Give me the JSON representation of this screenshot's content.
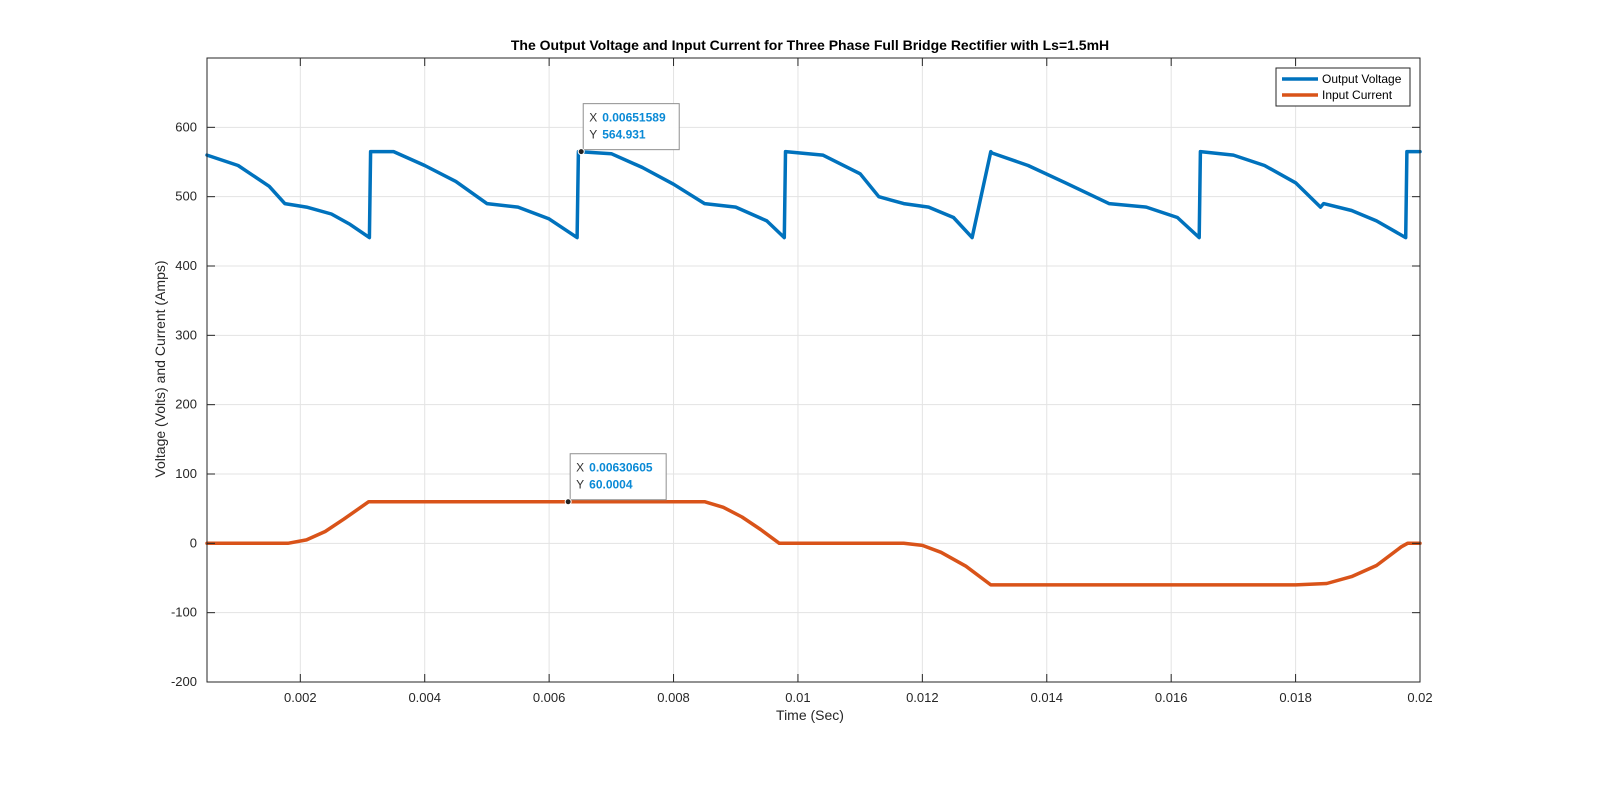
{
  "chart_data": {
    "type": "line",
    "title": "The Output Voltage and Input Current for Three Phase Full Bridge Rectifier with Ls=1.5mH",
    "xlabel": "Time (Sec)",
    "ylabel": "Voltage (Volts) and Current (Amps)",
    "xlim": [
      0.0005,
      0.02
    ],
    "ylim": [
      -200,
      700
    ],
    "xticks": [
      0.002,
      0.004,
      0.006,
      0.008,
      0.01,
      0.012,
      0.014,
      0.016,
      0.018,
      0.02
    ],
    "xtick_labels": [
      "0.002",
      "0.004",
      "0.006",
      "0.008",
      "0.01",
      "0.012",
      "0.014",
      "0.016",
      "0.018",
      "0.02"
    ],
    "yticks": [
      -200,
      -100,
      0,
      100,
      200,
      300,
      400,
      500,
      600
    ],
    "ytick_labels": [
      "-200",
      "-100",
      "0",
      "100",
      "200",
      "300",
      "400",
      "500",
      "600"
    ],
    "grid": true,
    "legend_position": "top-right",
    "series": [
      {
        "name": "Output Voltage",
        "color": "#0072BD",
        "x": [
          0.0005,
          0.001,
          0.0015,
          0.00175,
          0.0021,
          0.0025,
          0.0028,
          0.00311,
          0.00313,
          0.0035,
          0.004,
          0.0045,
          0.005,
          0.0055,
          0.006,
          0.00645,
          0.00647,
          0.007,
          0.0075,
          0.008,
          0.0085,
          0.009,
          0.0095,
          0.00978,
          0.0098,
          0.0104,
          0.011,
          0.0113,
          0.0117,
          0.0121,
          0.0125,
          0.0128,
          0.0131,
          0.01312,
          0.0137,
          0.0143,
          0.015,
          0.0156,
          0.0161,
          0.01645,
          0.01647,
          0.017,
          0.0175,
          0.018,
          0.0184,
          0.01845,
          0.0189,
          0.0193,
          0.01977,
          0.01979,
          0.02
        ],
        "y": [
          560,
          545,
          515,
          490,
          485,
          475,
          460,
          441,
          565,
          565,
          545,
          522,
          490,
          485,
          468,
          441,
          565,
          562,
          542,
          518,
          490,
          485,
          465,
          441,
          565,
          560,
          533,
          500,
          490,
          485,
          470,
          441,
          565,
          563,
          545,
          520,
          490,
          485,
          470,
          441,
          565,
          560,
          545,
          520,
          485,
          490,
          480,
          465,
          441,
          565,
          565
        ]
      },
      {
        "name": "Input Current",
        "color": "#D95319",
        "x": [
          0.0005,
          0.0018,
          0.0021,
          0.0024,
          0.0027,
          0.0031,
          0.004,
          0.006,
          0.0085,
          0.0088,
          0.0091,
          0.0094,
          0.0097,
          0.0098,
          0.0117,
          0.012,
          0.0123,
          0.0127,
          0.0131,
          0.014,
          0.018,
          0.0185,
          0.0189,
          0.0193,
          0.0197,
          0.0198,
          0.02
        ],
        "y": [
          0,
          0,
          5,
          17,
          35,
          60,
          60,
          60,
          60,
          52,
          38,
          20,
          0,
          0,
          0,
          -3,
          -13,
          -33,
          -60,
          -60,
          -60,
          -58,
          -48,
          -32,
          -5,
          0,
          0
        ]
      }
    ],
    "datatips": [
      {
        "series": "Output Voltage",
        "x": 0.00651589,
        "y": 564.931,
        "x_label": "X",
        "y_label": "Y",
        "x_text": "0.00651589",
        "y_text": "564.931"
      },
      {
        "series": "Input Current",
        "x": 0.00630605,
        "y": 60.0004,
        "x_label": "X",
        "y_label": "Y",
        "x_text": "0.00630605",
        "y_text": "60.0004"
      }
    ]
  }
}
